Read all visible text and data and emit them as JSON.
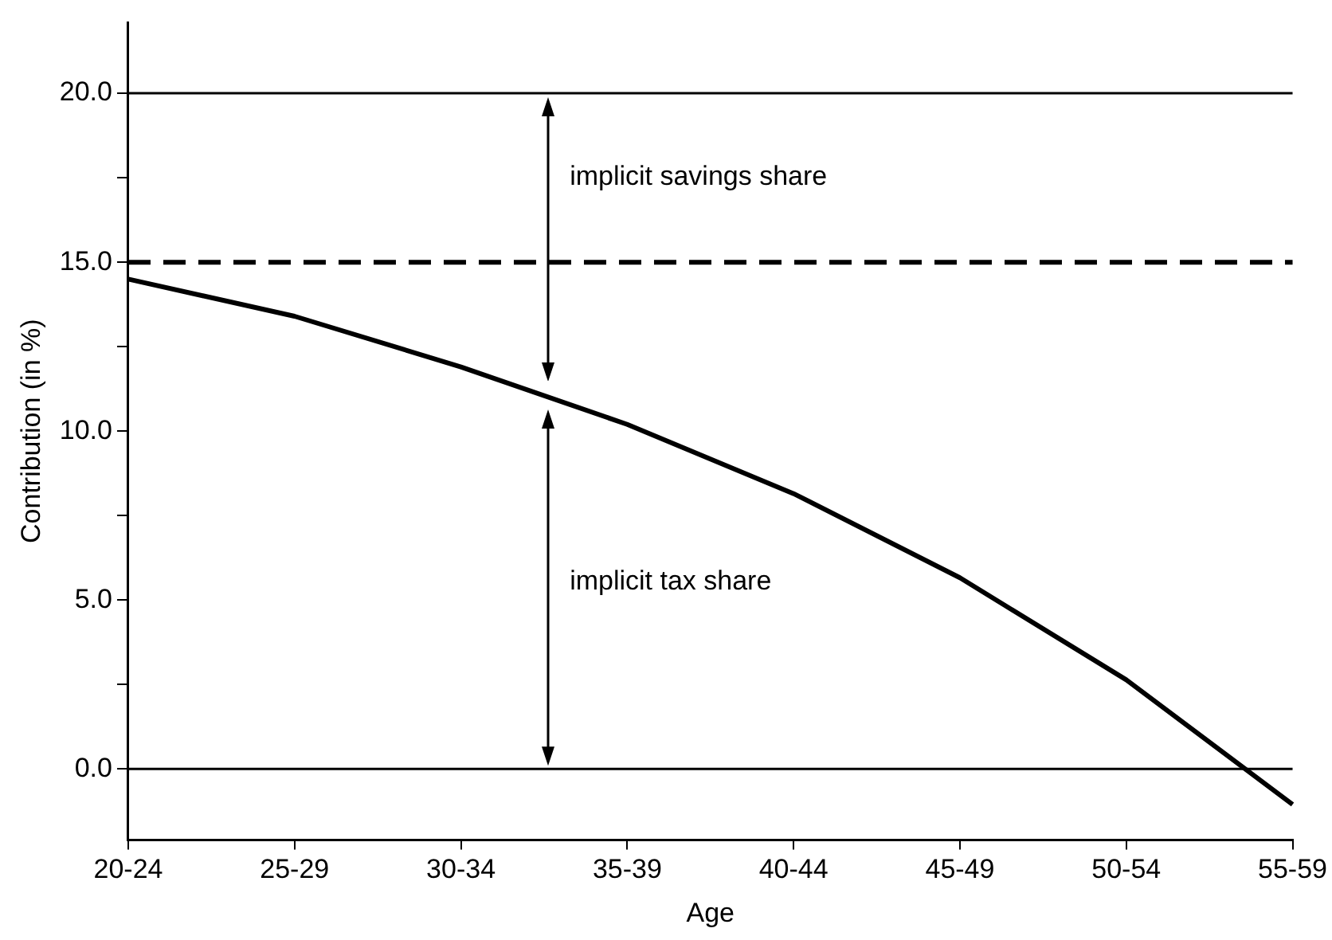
{
  "chart_data": {
    "type": "line",
    "xlabel": "Age",
    "ylabel": "Contribution (in %)",
    "categories": [
      "20-24",
      "25-29",
      "30-34",
      "35-39",
      "40-44",
      "45-49",
      "50-54",
      "55-59"
    ],
    "series": [
      {
        "color": "#000000",
        "values": [
          14.5,
          13.4,
          11.9,
          10.2,
          8.15,
          5.66,
          2.64,
          -1.05
        ]
      }
    ],
    "ylim": [
      -2.1,
      22.1
    ],
    "yticks": [
      {
        "value": 0,
        "label": "0.0"
      },
      {
        "value": 2.5,
        "label": null
      },
      {
        "value": 5,
        "label": "5.0"
      },
      {
        "value": 7.5,
        "label": null
      },
      {
        "value": 10,
        "label": "10.0"
      },
      {
        "value": 12.5,
        "label": null
      },
      {
        "value": 15,
        "label": "15.0"
      },
      {
        "value": 17.5,
        "label": null
      },
      {
        "value": 20,
        "label": "20.0"
      }
    ],
    "ref_lines": [
      {
        "axis": "y",
        "value": 20,
        "color": "#000000",
        "line_style": "solid"
      },
      {
        "axis": "y",
        "value": 15,
        "color": "#000000",
        "line_style": "dashed"
      },
      {
        "axis": "y",
        "value": 0,
        "color": "#000000",
        "line_style": "solid"
      }
    ],
    "annotations": [
      "implicit savings share",
      "implicit tax share"
    ],
    "grid": false,
    "legend": false,
    "marker": "none",
    "line_style": "solid"
  }
}
